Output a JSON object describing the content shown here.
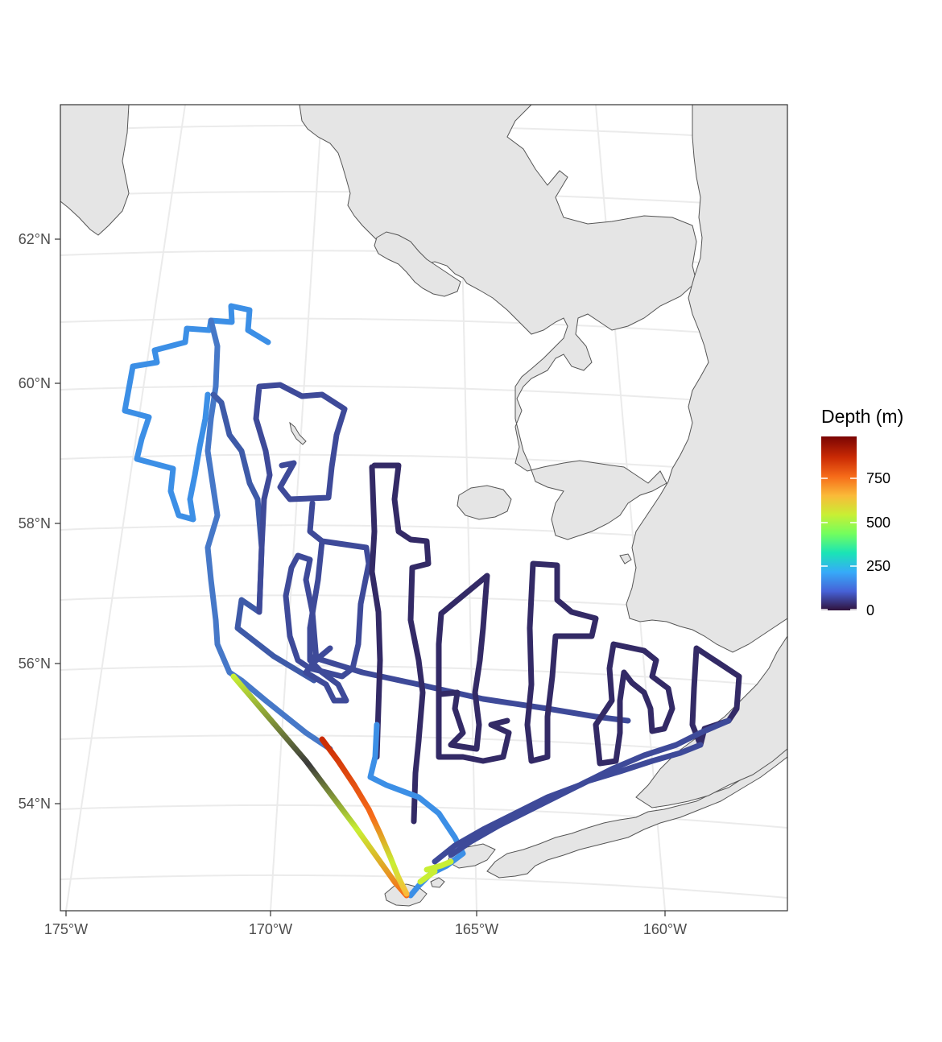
{
  "chart_data": {
    "type": "map",
    "lat_ticks": [
      "62°N",
      "60°N",
      "58°N",
      "56°N",
      "54°N"
    ],
    "lon_ticks": [
      "175°W",
      "170°W",
      "165°W",
      "160°W"
    ],
    "legend": {
      "title": "Depth (m)",
      "labels": [
        "750",
        "500",
        "250",
        "0"
      ],
      "colormap": [
        "#30123b",
        "#4662d7",
        "#36aaf9",
        "#1ae4b6",
        "#72fe5e",
        "#c8ef34",
        "#faba39",
        "#f66b19",
        "#ca2a04",
        "#7a0403"
      ]
    },
    "colors": {
      "land": "#e5e5e5",
      "coast": "#555555",
      "graticule": "#ebebeb",
      "shallow": "#30123b",
      "mid": "#3e4a99",
      "blue": "#4678c8",
      "light_blue": "#3c8fe6"
    }
  }
}
